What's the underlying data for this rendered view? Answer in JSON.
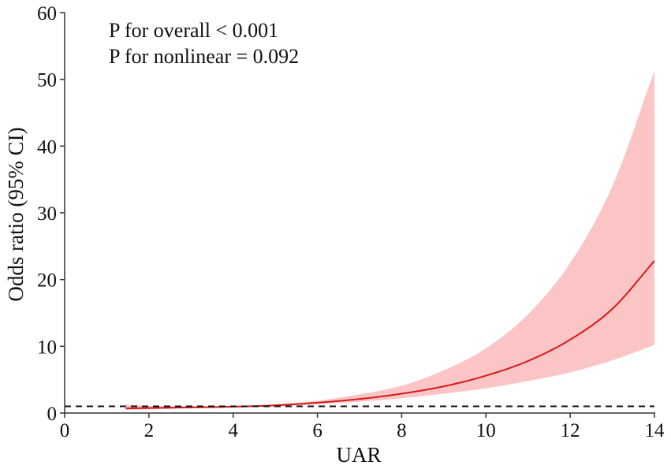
{
  "chart_data": {
    "type": "line",
    "xlabel": "UAR",
    "ylabel": "Odds ratio (95% CI)",
    "xlim": [
      0,
      14
    ],
    "ylim": [
      0,
      60
    ],
    "xticks": [
      "0",
      "2",
      "4",
      "6",
      "8",
      "10",
      "12",
      "14"
    ],
    "yticks": [
      "0",
      "10",
      "20",
      "30",
      "40",
      "50",
      "60"
    ],
    "annotations": [
      "P for overall < 0.001",
      "P for nonlinear = 0.092"
    ],
    "reference_line": {
      "y": 1,
      "style": "dashed"
    },
    "grid": false,
    "series": [
      {
        "type": "line",
        "x": [
          1.45,
          2,
          3,
          4,
          5,
          6,
          7,
          8,
          9,
          10,
          11,
          12,
          13,
          14
        ],
        "values": [
          0.7,
          0.75,
          0.85,
          0.95,
          1.15,
          1.55,
          2.1,
          2.9,
          4.0,
          5.6,
          7.8,
          11.0,
          15.6,
          22.8
        ],
        "lower": [
          0.45,
          0.55,
          0.7,
          0.85,
          1.0,
          1.3,
          1.7,
          2.2,
          2.9,
          3.7,
          4.8,
          6.1,
          7.9,
          10.2
        ],
        "upper": [
          1.25,
          1.1,
          1.0,
          1.05,
          1.3,
          1.85,
          2.8,
          4.1,
          6.4,
          9.7,
          14.8,
          22.5,
          34.0,
          51.3
        ]
      }
    ],
    "colors": {
      "line": "#d7191c",
      "band": "#fcc5c5",
      "reference": "#111111",
      "axis": "#333333"
    }
  }
}
